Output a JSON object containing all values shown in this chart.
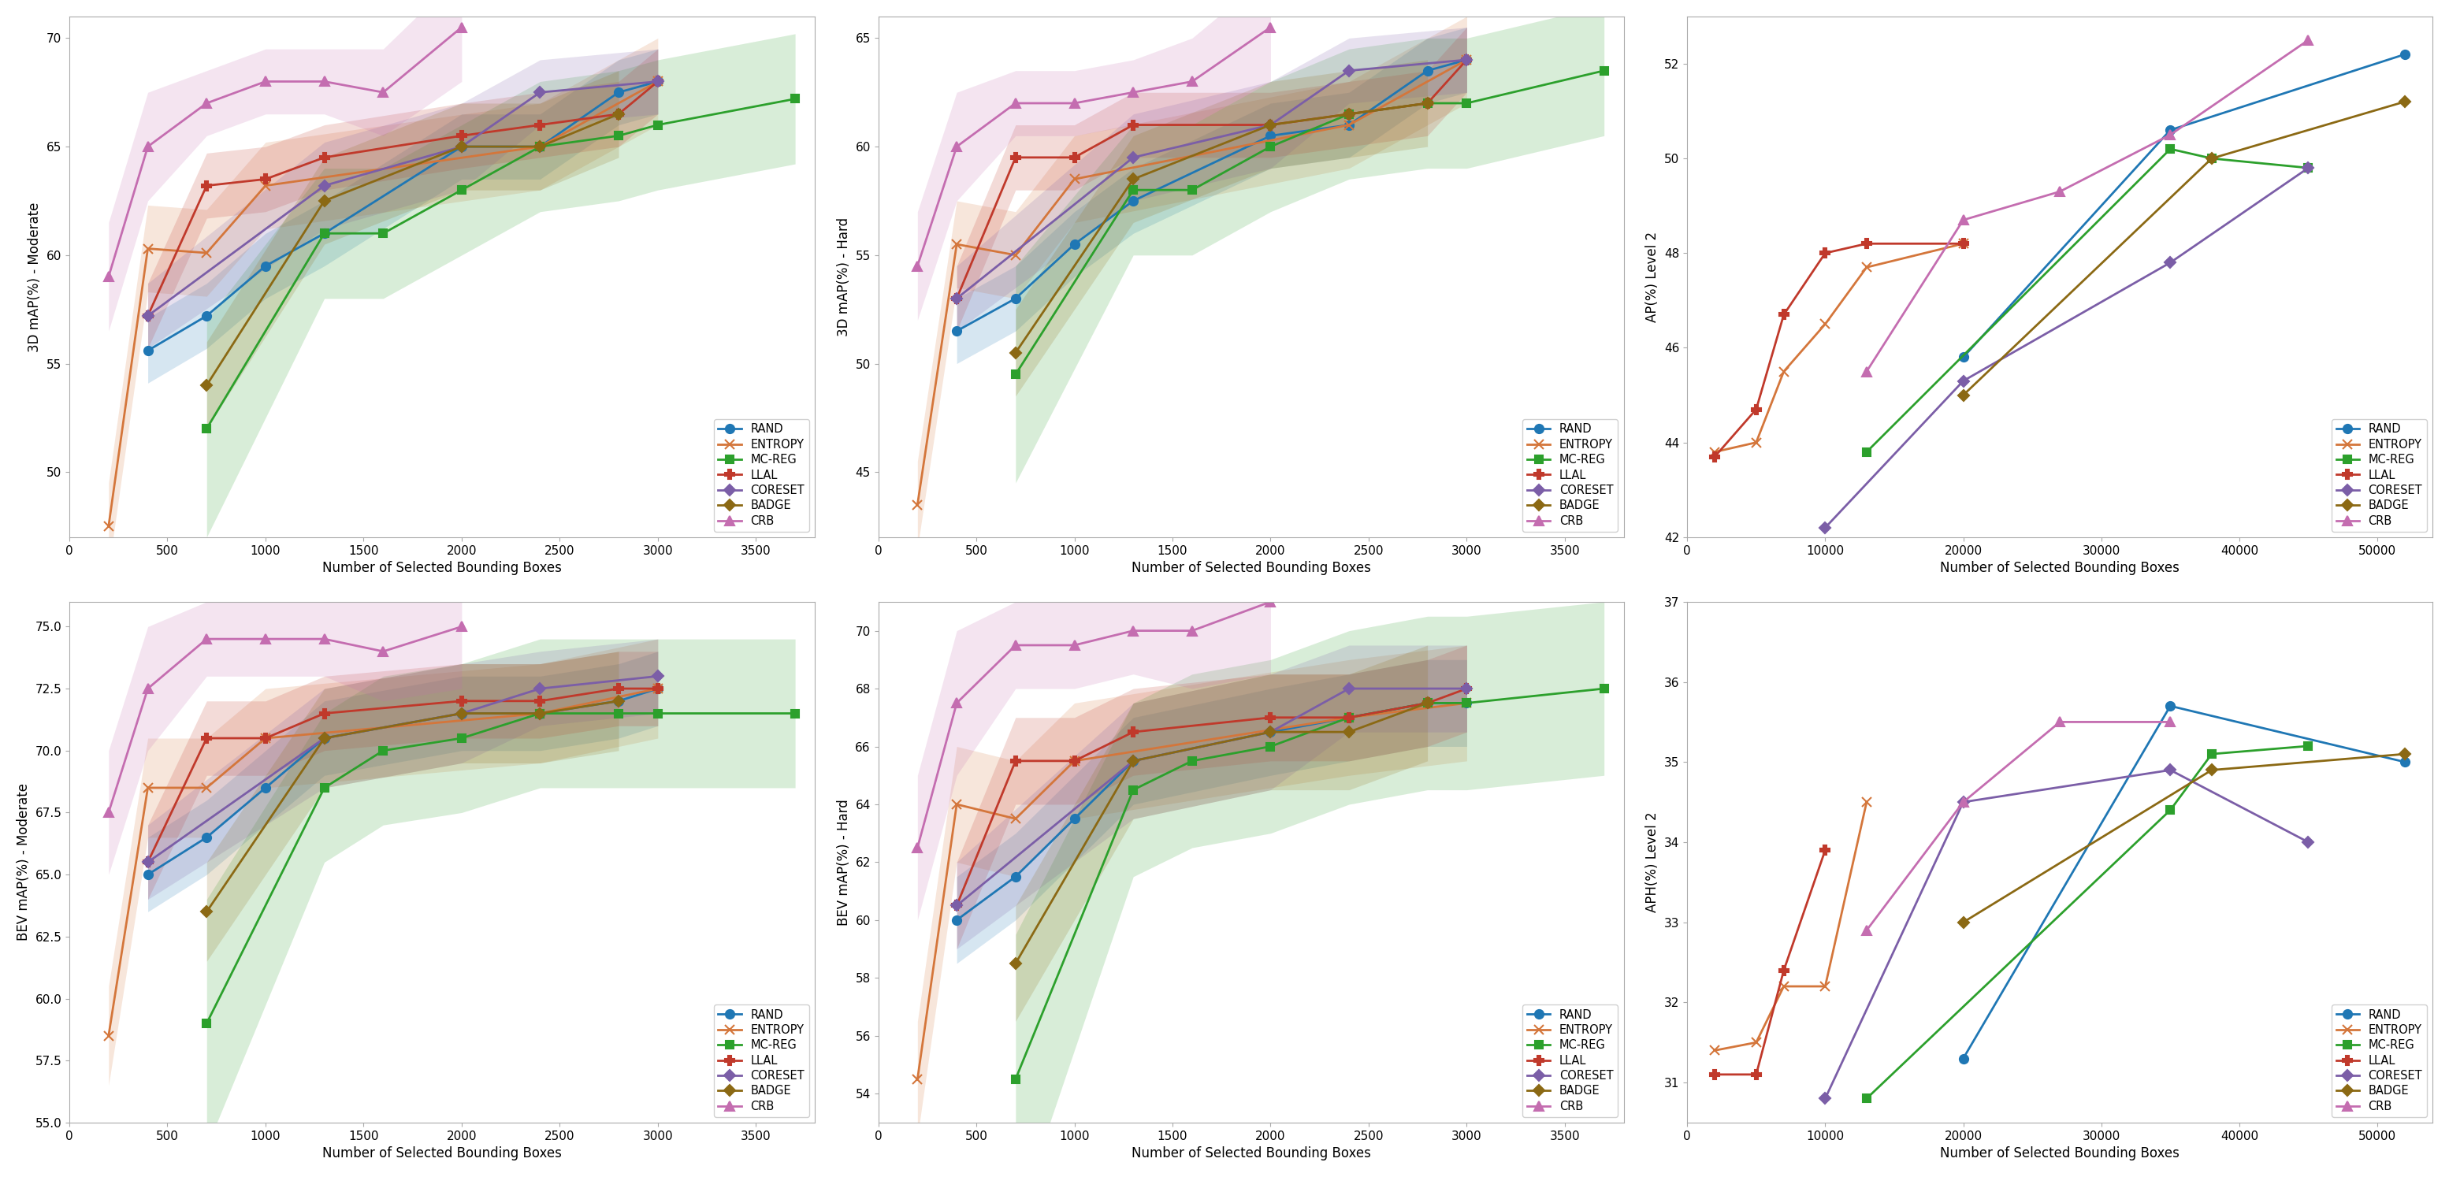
{
  "colors": {
    "RAND": "#1f77b4",
    "ENTROPY": "#d4763b",
    "MC-REG": "#2ca02c",
    "LLAL": "#c0392b",
    "CORESET": "#7b5ea7",
    "BADGE": "#8B6914",
    "CRB": "#c46db0"
  },
  "markers": {
    "RAND": "o",
    "ENTROPY": "x",
    "MC-REG": "s",
    "LLAL": "P",
    "CORESET": "D",
    "BADGE": "D",
    "CRB": "^"
  },
  "methods": [
    "RAND",
    "ENTROPY",
    "MC-REG",
    "LLAL",
    "CORESET",
    "BADGE",
    "CRB"
  ],
  "kitti_x": [
    200,
    400,
    700,
    1000,
    1300,
    1600,
    2000,
    2400,
    2800,
    3000,
    3700
  ],
  "kitti_3d_mod": {
    "RAND": [
      null,
      55.6,
      57.2,
      59.5,
      61.0,
      null,
      65.0,
      65.0,
      67.5,
      68.0,
      null
    ],
    "ENTROPY": [
      47.5,
      60.3,
      60.1,
      63.2,
      null,
      null,
      null,
      65.0,
      null,
      68.0,
      null
    ],
    "MC-REG": [
      null,
      null,
      52.0,
      null,
      61.0,
      61.0,
      63.0,
      65.0,
      65.5,
      66.0,
      67.2
    ],
    "LLAL": [
      null,
      57.2,
      63.2,
      63.5,
      64.5,
      null,
      65.5,
      66.0,
      66.5,
      68.0,
      null
    ],
    "CORESET": [
      null,
      57.2,
      null,
      null,
      63.2,
      null,
      65.0,
      67.5,
      null,
      68.0,
      null
    ],
    "BADGE": [
      null,
      null,
      54.0,
      null,
      62.5,
      null,
      65.0,
      65.0,
      66.5,
      null,
      null
    ],
    "CRB": [
      59.0,
      65.0,
      67.0,
      68.0,
      68.0,
      67.5,
      70.5,
      null,
      null,
      null,
      null
    ]
  },
  "kitti_3d_hard": {
    "RAND": [
      null,
      51.5,
      53.0,
      55.5,
      57.5,
      null,
      60.5,
      61.0,
      63.5,
      64.0,
      null
    ],
    "ENTROPY": [
      43.5,
      55.5,
      55.0,
      58.5,
      null,
      null,
      null,
      61.0,
      null,
      64.0,
      null
    ],
    "MC-REG": [
      null,
      null,
      49.5,
      null,
      58.0,
      58.0,
      60.0,
      61.5,
      62.0,
      62.0,
      63.5
    ],
    "LLAL": [
      null,
      53.0,
      59.5,
      59.5,
      61.0,
      null,
      61.0,
      61.5,
      62.0,
      64.0,
      null
    ],
    "CORESET": [
      null,
      53.0,
      null,
      null,
      59.5,
      null,
      61.0,
      63.5,
      null,
      64.0,
      null
    ],
    "BADGE": [
      null,
      null,
      50.5,
      null,
      58.5,
      null,
      61.0,
      61.5,
      62.0,
      null,
      null
    ],
    "CRB": [
      54.5,
      60.0,
      62.0,
      62.0,
      62.5,
      63.0,
      65.5,
      null,
      null,
      null,
      null
    ]
  },
  "kitti_bev_mod": {
    "RAND": [
      null,
      65.0,
      66.5,
      68.5,
      70.5,
      null,
      71.5,
      71.5,
      72.0,
      72.5,
      null
    ],
    "ENTROPY": [
      58.5,
      68.5,
      68.5,
      70.5,
      null,
      null,
      null,
      71.5,
      null,
      72.5,
      null
    ],
    "MC-REG": [
      null,
      null,
      59.0,
      null,
      68.5,
      70.0,
      70.5,
      71.5,
      71.5,
      71.5,
      71.5
    ],
    "LLAL": [
      null,
      65.5,
      70.5,
      70.5,
      71.5,
      null,
      72.0,
      72.0,
      72.5,
      72.5,
      null
    ],
    "CORESET": [
      null,
      65.5,
      null,
      null,
      70.5,
      null,
      71.5,
      72.5,
      null,
      73.0,
      null
    ],
    "BADGE": [
      null,
      null,
      63.5,
      null,
      70.5,
      null,
      71.5,
      71.5,
      72.0,
      null,
      null
    ],
    "CRB": [
      67.5,
      72.5,
      74.5,
      74.5,
      74.5,
      74.0,
      75.0,
      null,
      null,
      null,
      null
    ]
  },
  "kitti_bev_hard": {
    "RAND": [
      null,
      60.0,
      61.5,
      63.5,
      65.5,
      null,
      66.5,
      67.0,
      67.5,
      67.5,
      null
    ],
    "ENTROPY": [
      54.5,
      64.0,
      63.5,
      65.5,
      null,
      null,
      null,
      67.0,
      null,
      67.5,
      null
    ],
    "MC-REG": [
      null,
      null,
      54.5,
      null,
      64.5,
      65.5,
      66.0,
      67.0,
      67.5,
      67.5,
      68.0
    ],
    "LLAL": [
      null,
      60.5,
      65.5,
      65.5,
      66.5,
      null,
      67.0,
      67.0,
      67.5,
      68.0,
      null
    ],
    "CORESET": [
      null,
      60.5,
      null,
      null,
      65.5,
      null,
      66.5,
      68.0,
      null,
      68.0,
      null
    ],
    "BADGE": [
      null,
      null,
      58.5,
      null,
      65.5,
      null,
      66.5,
      66.5,
      67.5,
      null,
      null
    ],
    "CRB": [
      62.5,
      67.5,
      69.5,
      69.5,
      70.0,
      70.0,
      71.0,
      null,
      null,
      null,
      null
    ]
  },
  "kitti_3d_mod_std": {
    "RAND": [
      null,
      1.5,
      1.5,
      1.5,
      1.5,
      null,
      1.5,
      1.5,
      1.5,
      1.5,
      null
    ],
    "ENTROPY": [
      2.0,
      2.0,
      2.0,
      2.0,
      null,
      null,
      null,
      2.0,
      null,
      2.0,
      null
    ],
    "MC-REG": [
      null,
      null,
      5.0,
      null,
      3.0,
      3.0,
      3.0,
      3.0,
      3.0,
      3.0,
      3.0
    ],
    "LLAL": [
      null,
      1.5,
      1.5,
      1.5,
      1.5,
      null,
      1.5,
      1.5,
      1.5,
      1.5,
      null
    ],
    "CORESET": [
      null,
      1.5,
      null,
      null,
      2.0,
      null,
      2.0,
      1.5,
      null,
      1.5,
      null
    ],
    "BADGE": [
      null,
      null,
      2.0,
      null,
      2.0,
      null,
      2.0,
      2.0,
      2.0,
      null,
      null
    ],
    "CRB": [
      2.5,
      2.5,
      1.5,
      1.5,
      1.5,
      2.0,
      2.5,
      null,
      null,
      null,
      null
    ]
  },
  "kitti_3d_hard_std": {
    "RAND": [
      null,
      1.5,
      1.5,
      1.5,
      1.5,
      null,
      1.5,
      1.5,
      1.5,
      1.5,
      null
    ],
    "ENTROPY": [
      2.0,
      2.0,
      2.0,
      2.0,
      null,
      null,
      null,
      2.0,
      null,
      2.0,
      null
    ],
    "MC-REG": [
      null,
      null,
      5.0,
      null,
      3.0,
      3.0,
      3.0,
      3.0,
      3.0,
      3.0,
      3.0
    ],
    "LLAL": [
      null,
      1.5,
      1.5,
      1.5,
      1.5,
      null,
      1.5,
      1.5,
      1.5,
      1.5,
      null
    ],
    "CORESET": [
      null,
      1.5,
      null,
      null,
      2.0,
      null,
      2.0,
      1.5,
      null,
      1.5,
      null
    ],
    "BADGE": [
      null,
      null,
      2.0,
      null,
      2.0,
      null,
      2.0,
      2.0,
      2.0,
      null,
      null
    ],
    "CRB": [
      2.5,
      2.5,
      1.5,
      1.5,
      1.5,
      2.0,
      2.5,
      null,
      null,
      null,
      null
    ]
  },
  "kitti_bev_mod_std": {
    "RAND": [
      null,
      1.5,
      1.5,
      1.5,
      1.5,
      null,
      1.5,
      1.5,
      1.5,
      1.5,
      null
    ],
    "ENTROPY": [
      2.0,
      2.0,
      2.0,
      2.0,
      null,
      null,
      null,
      2.0,
      null,
      2.0,
      null
    ],
    "MC-REG": [
      null,
      null,
      5.0,
      null,
      3.0,
      3.0,
      3.0,
      3.0,
      3.0,
      3.0,
      3.0
    ],
    "LLAL": [
      null,
      1.5,
      1.5,
      1.5,
      1.5,
      null,
      1.5,
      1.5,
      1.5,
      1.5,
      null
    ],
    "CORESET": [
      null,
      1.5,
      null,
      null,
      2.0,
      null,
      2.0,
      1.5,
      null,
      1.5,
      null
    ],
    "BADGE": [
      null,
      null,
      2.0,
      null,
      2.0,
      null,
      2.0,
      2.0,
      2.0,
      null,
      null
    ],
    "CRB": [
      2.5,
      2.5,
      1.5,
      1.5,
      1.5,
      2.0,
      2.5,
      null,
      null,
      null,
      null
    ]
  },
  "kitti_bev_hard_std": {
    "RAND": [
      null,
      1.5,
      1.5,
      1.5,
      1.5,
      null,
      1.5,
      1.5,
      1.5,
      1.5,
      null
    ],
    "ENTROPY": [
      2.0,
      2.0,
      2.0,
      2.0,
      null,
      null,
      null,
      2.0,
      null,
      2.0,
      null
    ],
    "MC-REG": [
      null,
      null,
      5.0,
      null,
      3.0,
      3.0,
      3.0,
      3.0,
      3.0,
      3.0,
      3.0
    ],
    "LLAL": [
      null,
      1.5,
      1.5,
      1.5,
      1.5,
      null,
      1.5,
      1.5,
      1.5,
      1.5,
      null
    ],
    "CORESET": [
      null,
      1.5,
      null,
      null,
      2.0,
      null,
      2.0,
      1.5,
      null,
      1.5,
      null
    ],
    "BADGE": [
      null,
      null,
      2.0,
      null,
      2.0,
      null,
      2.0,
      2.0,
      2.0,
      null,
      null
    ],
    "CRB": [
      2.5,
      2.5,
      1.5,
      1.5,
      1.5,
      2.0,
      2.5,
      null,
      null,
      null,
      null
    ]
  },
  "waymo_x": [
    2000,
    5000,
    7000,
    10000,
    13000,
    20000,
    27000,
    35000,
    38000,
    45000,
    52000
  ],
  "waymo_ap_l2": {
    "RAND": [
      null,
      null,
      null,
      null,
      null,
      45.8,
      null,
      50.6,
      null,
      null,
      52.2
    ],
    "ENTROPY": [
      43.8,
      44.0,
      45.5,
      46.5,
      47.7,
      48.2,
      null,
      null,
      null,
      null,
      null
    ],
    "MC-REG": [
      null,
      null,
      null,
      null,
      43.8,
      null,
      null,
      50.2,
      50.0,
      49.8,
      null
    ],
    "LLAL": [
      43.7,
      44.7,
      46.7,
      48.0,
      48.2,
      48.2,
      null,
      null,
      null,
      null,
      null
    ],
    "CORESET": [
      null,
      null,
      null,
      42.2,
      null,
      45.3,
      null,
      47.8,
      null,
      49.8,
      null
    ],
    "BADGE": [
      null,
      null,
      null,
      null,
      null,
      45.0,
      null,
      null,
      50.0,
      null,
      51.2
    ],
    "CRB": [
      null,
      null,
      null,
      null,
      45.5,
      48.7,
      49.3,
      50.5,
      null,
      52.5,
      null
    ]
  },
  "waymo_aph_l2": {
    "RAND": [
      null,
      null,
      null,
      null,
      null,
      31.3,
      null,
      35.7,
      null,
      null,
      35.0
    ],
    "ENTROPY": [
      31.4,
      31.5,
      32.2,
      32.2,
      34.5,
      null,
      null,
      null,
      null,
      null,
      null
    ],
    "MC-REG": [
      null,
      null,
      null,
      null,
      30.8,
      null,
      null,
      34.4,
      35.1,
      35.2,
      null
    ],
    "LLAL": [
      31.1,
      31.1,
      32.4,
      33.9,
      null,
      null,
      null,
      null,
      null,
      null,
      null
    ],
    "CORESET": [
      null,
      null,
      null,
      30.8,
      null,
      34.5,
      null,
      34.9,
      null,
      34.0,
      null
    ],
    "BADGE": [
      null,
      null,
      null,
      null,
      null,
      33.0,
      null,
      null,
      34.9,
      null,
      35.1
    ],
    "CRB": [
      null,
      null,
      null,
      null,
      32.9,
      34.5,
      35.5,
      35.5,
      null,
      null,
      null
    ]
  },
  "ylims": {
    "kitti_3d_mod": [
      47,
      71
    ],
    "kitti_3d_hard": [
      42,
      66
    ],
    "waymo_ap_l2": [
      42,
      53
    ],
    "kitti_bev_mod": [
      55,
      76
    ],
    "kitti_bev_hard": [
      53,
      71
    ],
    "waymo_aph_l2": [
      30.5,
      37
    ]
  },
  "xlims": {
    "kitti": [
      0,
      3800
    ],
    "waymo": [
      0,
      54000
    ]
  },
  "xticks_kitti": [
    0,
    500,
    1000,
    1500,
    2000,
    2500,
    3000,
    3500
  ],
  "xticks_waymo": [
    0,
    10000,
    20000,
    30000,
    40000,
    50000
  ],
  "ylabels": {
    "kitti_3d_mod": "3D mAP(%) - Moderate",
    "kitti_3d_hard": "3D mAP(%) - Hard",
    "waymo_ap_l2": "AP(%) Level 2",
    "kitti_bev_mod": "BEV mAP(%) - Moderate",
    "kitti_bev_hard": "BEV mAP(%) - Hard",
    "waymo_aph_l2": "APH(%) Level 2"
  },
  "xlabel": "Number of Selected Bounding Boxes",
  "fontsize_label": 12,
  "fontsize_tick": 11,
  "fontsize_legend": 10.5,
  "linewidth": 2.0,
  "markersize": 8
}
